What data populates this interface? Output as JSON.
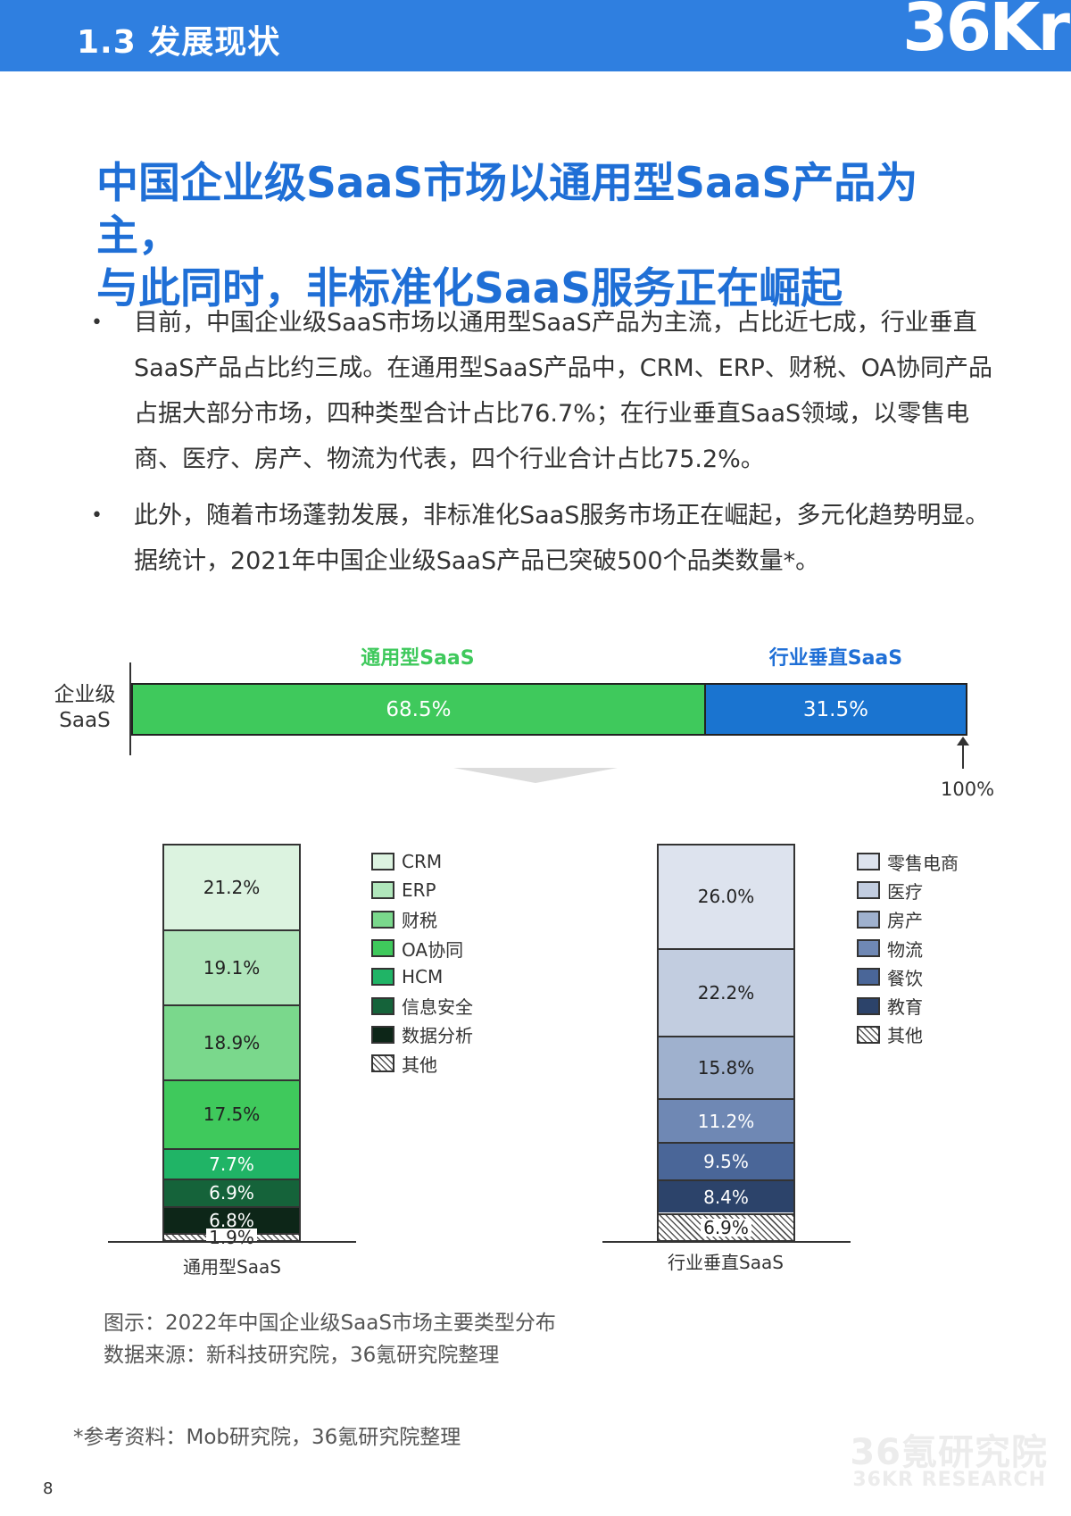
{
  "header": {
    "section_title": "1.3 发展现状",
    "logo": "36Kr"
  },
  "main_title": {
    "line1": "中国企业级SaaS市场以通用型SaaS产品为主，",
    "line2": "与此同时，非标准化SaaS服务正在崛起"
  },
  "bullets": [
    "目前，中国企业级SaaS市场以通用型SaaS产品为主流，占比近七成，行业垂直SaaS产品占比约三成。在通用型SaaS产品中，CRM、ERP、财税、OA协同产品占据大部分市场，四种类型合计占比76.7%；在行业垂直SaaS领域，以零售电商、医疗、房产、物流为代表，四个行业合计占比75.2%。",
    "此外，随着市场蓬勃发展，非标准化SaaS服务市场正在崛起，多元化趋势明显。据统计，2021年中国企业级SaaS产品已突破500个品类数量*。"
  ],
  "colors": {
    "header_blue": "#2f7fe0",
    "title_blue": "#1f6fd6",
    "general_green": "#3fc95c",
    "vertical_blue": "#1a74d0"
  },
  "chart_data": [
    {
      "type": "bar",
      "orientation": "horizontal-stacked",
      "categories": [
        "企业级SaaS"
      ],
      "category_label": {
        "line1": "企业级",
        "line2": "SaaS"
      },
      "series": [
        {
          "name": "通用型SaaS",
          "values": [
            68.5
          ],
          "label": "68.5%",
          "color": "#3fc95c",
          "label_color": "#3fc95c"
        },
        {
          "name": "行业垂直SaaS",
          "values": [
            31.5
          ],
          "label": "31.5%",
          "color": "#1a74d0",
          "label_color": "#1f6fd6"
        }
      ],
      "total_marker": "100%",
      "xlim": [
        0,
        100
      ]
    },
    {
      "type": "bar",
      "orientation": "vertical-stacked",
      "category": "通用型SaaS",
      "ylim": [
        0,
        100
      ],
      "segments": [
        {
          "name": "CRM",
          "value": 21.2,
          "label": "21.2%",
          "color": "#dcf3e0"
        },
        {
          "name": "ERP",
          "value": 19.1,
          "label": "19.1%",
          "color": "#b0e6bb"
        },
        {
          "name": "财税",
          "value": 18.9,
          "label": "18.9%",
          "color": "#7ad88c"
        },
        {
          "name": "OA协同",
          "value": 17.5,
          "label": "17.5%",
          "color": "#3fc95c"
        },
        {
          "name": "HCM",
          "value": 7.7,
          "label": "7.7%",
          "color": "#20b466",
          "light": true
        },
        {
          "name": "信息安全",
          "value": 6.9,
          "label": "6.9%",
          "color": "#15633a",
          "light": true
        },
        {
          "name": "数据分析",
          "value": 6.8,
          "label": "6.8%",
          "color": "#0d2618",
          "light": true
        },
        {
          "name": "其他",
          "value": 1.9,
          "label": "1.9%",
          "color": "hatch"
        }
      ]
    },
    {
      "type": "bar",
      "orientation": "vertical-stacked",
      "category": "行业垂直SaaS",
      "ylim": [
        0,
        100
      ],
      "segments": [
        {
          "name": "零售电商",
          "value": 26.0,
          "label": "26.0%",
          "color": "#dde3ee"
        },
        {
          "name": "医疗",
          "value": 22.2,
          "label": "22.2%",
          "color": "#c2cde0"
        },
        {
          "name": "房产",
          "value": 15.8,
          "label": "15.8%",
          "color": "#9fb1ce"
        },
        {
          "name": "物流",
          "value": 11.2,
          "label": "11.2%",
          "color": "#6f88b4",
          "light": true
        },
        {
          "name": "餐饮",
          "value": 9.5,
          "label": "9.5%",
          "color": "#4a6698",
          "light": true
        },
        {
          "name": "教育",
          "value": 8.4,
          "label": "8.4%",
          "color": "#2c436a",
          "light": true
        },
        {
          "name": "其他",
          "value": 6.9,
          "label": "6.9%",
          "color": "hatch"
        }
      ]
    }
  ],
  "caption": {
    "figure": "图示：2022年中国企业级SaaS市场主要类型分布",
    "source": "数据来源：新科技研究院，36氪研究院整理"
  },
  "reference": "*参考资料：Mob研究院，36氪研究院整理",
  "page_number": "8",
  "watermark": {
    "line1": "36氪研究院",
    "line2": "36KR RESEARCH"
  }
}
